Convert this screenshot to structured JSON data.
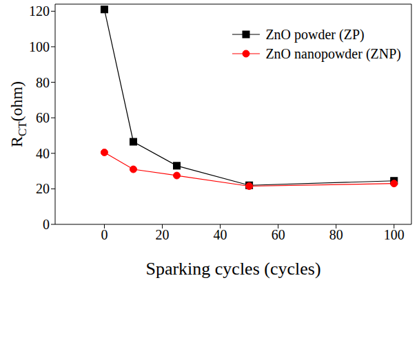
{
  "chart_data": {
    "type": "line",
    "x_label": "Sparking cycles (cycles)",
    "y_label": "RCT(ohm)",
    "x": [
      0,
      10,
      25,
      50,
      100
    ],
    "series": [
      {
        "name": "ZnO powder (ZP)",
        "color": "#000000",
        "marker": "square",
        "values": [
          121,
          46.5,
          33,
          22,
          24.5
        ]
      },
      {
        "name": "ZnO nanopowder (ZNP)",
        "color": "#ff0000",
        "marker": "circle",
        "values": [
          40.5,
          31,
          27.5,
          21.5,
          23
        ]
      }
    ],
    "xlim": [
      -17,
      106
    ],
    "xticks": [
      0,
      20,
      40,
      60,
      80,
      100
    ],
    "ylim": [
      0,
      124
    ],
    "yticks": [
      0,
      20,
      40,
      60,
      80,
      100,
      120
    ],
    "grid": false,
    "legend": "upper right"
  }
}
